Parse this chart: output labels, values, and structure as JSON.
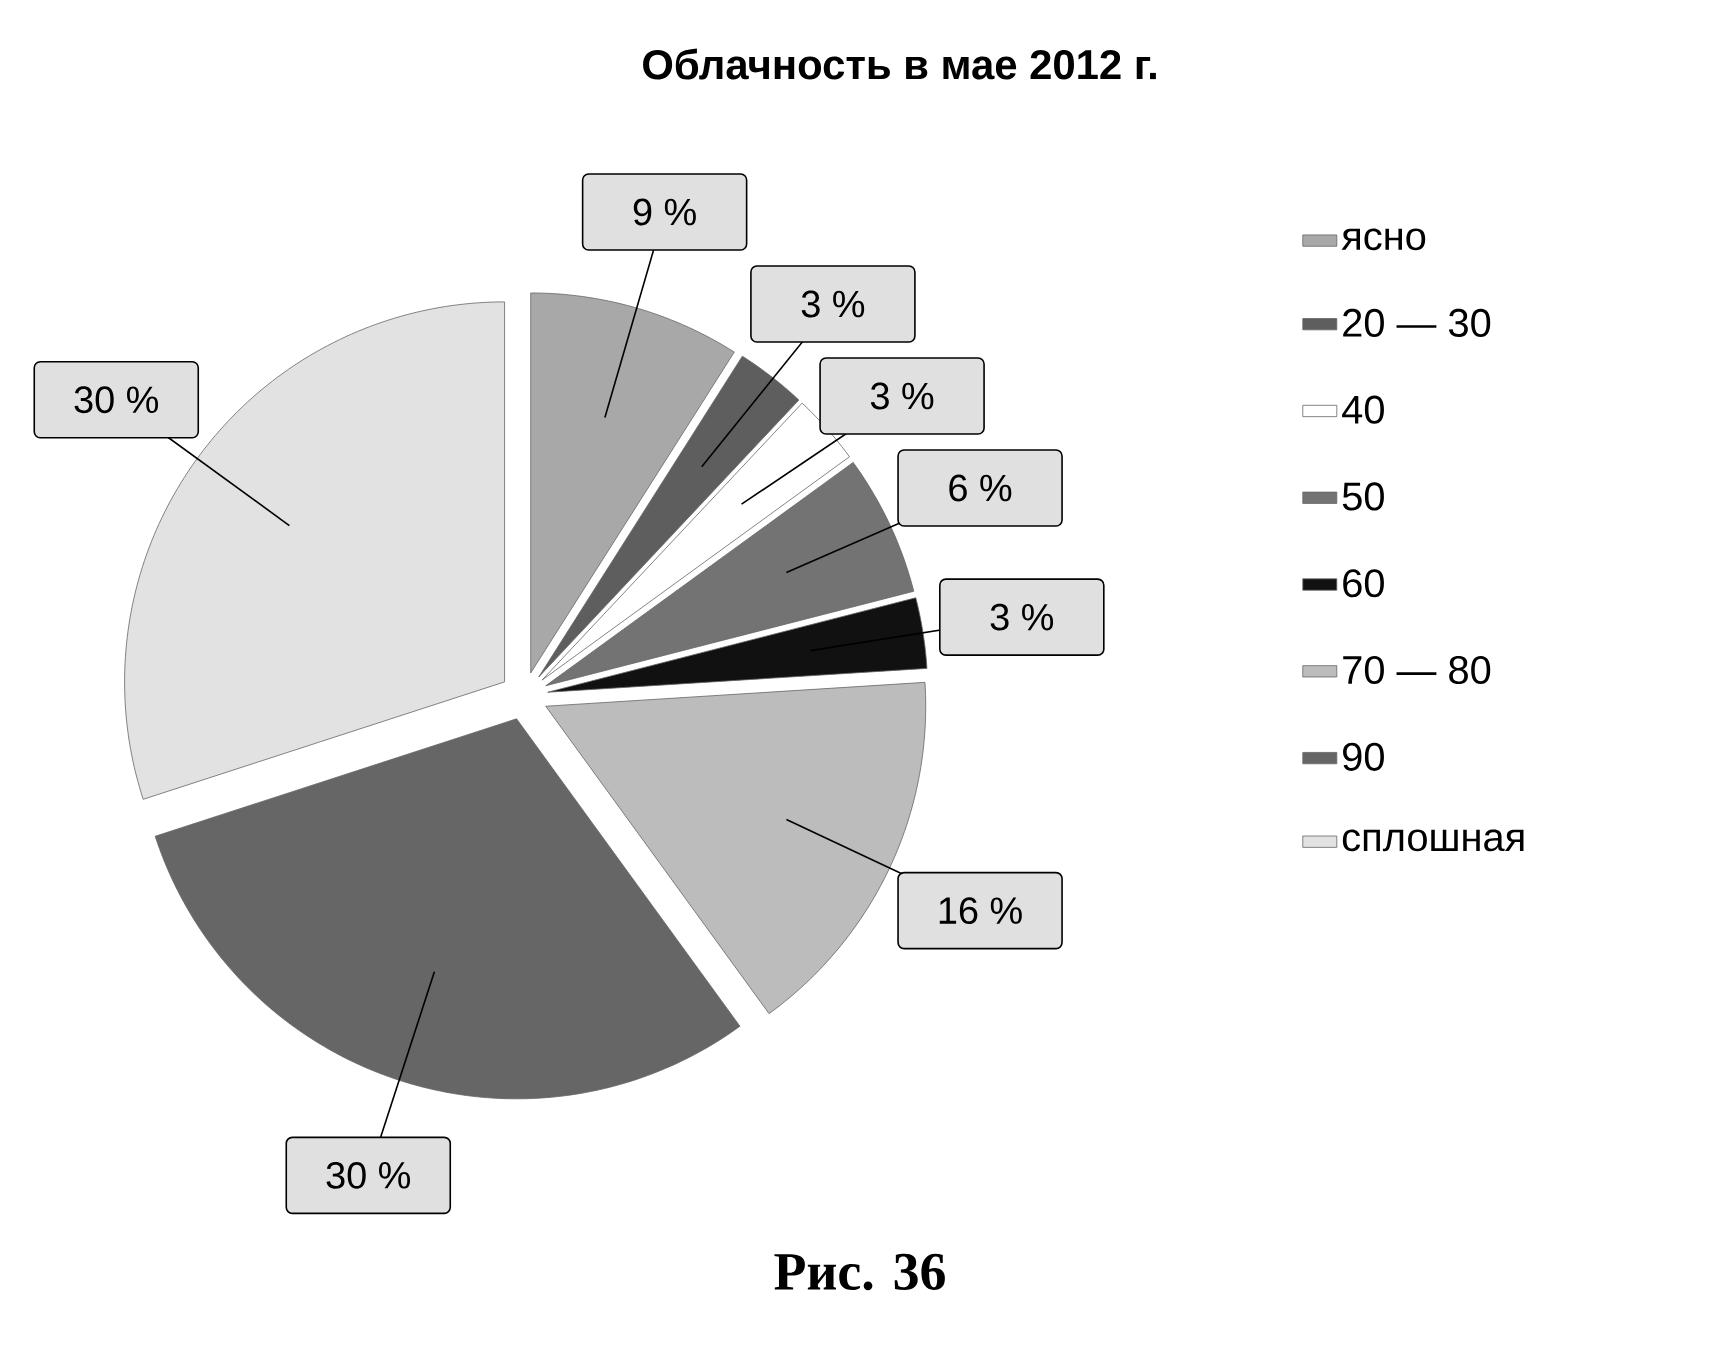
{
  "chart_data": {
    "type": "pie",
    "title": "Облачность в мае 2012 г.",
    "categories": [
      "ясно",
      "20 — 30",
      "40",
      "50",
      "60",
      "70 — 80",
      "90",
      "сплошная"
    ],
    "values": [
      9,
      3,
      3,
      6,
      3,
      16,
      30,
      30
    ],
    "value_labels": [
      "9 %",
      "3 %",
      "3 %",
      "6 %",
      "3 %",
      "16 %",
      "30 %",
      "30 %"
    ],
    "colors": [
      "#a8a8a8",
      "#5e5e5e",
      "#ffffff",
      "#737373",
      "#111111",
      "#bcbcbc",
      "#666666",
      "#e2e2e2"
    ],
    "legend": "right",
    "annotations": [
      "Рис. 36"
    ]
  }
}
